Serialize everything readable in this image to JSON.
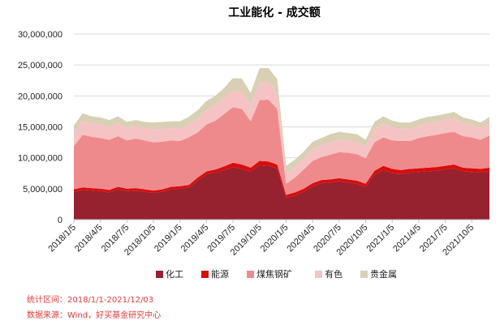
{
  "chart_data": {
    "type": "area",
    "stacked": true,
    "title": "工业能化 - 成交额",
    "xlabel": "",
    "ylabel": "",
    "ylim": [
      0,
      30000000
    ],
    "yticks": [
      "0",
      "5,000,000",
      "10,000,000",
      "15,000,000",
      "20,000,000",
      "25,000,000",
      "30,000,000"
    ],
    "xticks": [
      "2018/1/5",
      "2018/4/5",
      "2018/7/5",
      "2018/10/5",
      "2019/1/5",
      "2019/4/5",
      "2019/7/5",
      "2019/10/5",
      "2020/1/5",
      "2020/4/5",
      "2020/7/5",
      "2020/10/5",
      "2021/1/5",
      "2021/4/5",
      "2021/7/5",
      "2021/10/5"
    ],
    "grid": true,
    "legend_position": "bottom",
    "x": [
      "2018/1/5",
      "2018/2/5",
      "2018/3/5",
      "2018/4/5",
      "2018/5/5",
      "2018/6/5",
      "2018/7/5",
      "2018/8/5",
      "2018/9/5",
      "2018/10/5",
      "2018/11/5",
      "2018/12/5",
      "2019/1/5",
      "2019/2/5",
      "2019/3/5",
      "2019/4/5",
      "2019/5/5",
      "2019/6/5",
      "2019/7/5",
      "2019/8/5",
      "2019/9/5",
      "2019/10/5",
      "2019/11/5",
      "2019/12/5",
      "2020/1/5",
      "2020/2/5",
      "2020/3/5",
      "2020/4/5",
      "2020/5/5",
      "2020/6/5",
      "2020/7/5",
      "2020/8/5",
      "2020/9/5",
      "2020/10/5",
      "2020/11/5",
      "2020/12/5",
      "2021/1/5",
      "2021/2/5",
      "2021/3/5",
      "2021/4/5",
      "2021/5/5",
      "2021/6/5",
      "2021/7/5",
      "2021/8/5",
      "2021/9/5",
      "2021/10/5",
      "2021/11/5",
      "2021/12/3"
    ],
    "series": [
      {
        "name": "化工",
        "color": "#96212f",
        "values": [
          4500000,
          4800000,
          4700000,
          4600000,
          4400000,
          4900000,
          4600000,
          4700000,
          4500000,
          4300000,
          4500000,
          4900000,
          5000000,
          5200000,
          6300000,
          7300000,
          7600000,
          8000000,
          8500000,
          8200000,
          7800000,
          8800000,
          8700000,
          8300000,
          3500000,
          3900000,
          4500000,
          5400000,
          5900000,
          6000000,
          6200000,
          6000000,
          5800000,
          5300000,
          7300000,
          8000000,
          7500000,
          7400000,
          7600000,
          7700000,
          7800000,
          7900000,
          8100000,
          8300000,
          7800000,
          7700000,
          7600000,
          7800000
        ]
      },
      {
        "name": "能源",
        "color": "#d90c0c",
        "values": [
          400000,
          400000,
          400000,
          400000,
          400000,
          400000,
          400000,
          400000,
          400000,
          400000,
          400000,
          400000,
          400000,
          400000,
          500000,
          500000,
          500000,
          600000,
          700000,
          700000,
          600000,
          700000,
          700000,
          600000,
          500000,
          500000,
          500000,
          500000,
          500000,
          500000,
          500000,
          500000,
          500000,
          500000,
          600000,
          700000,
          700000,
          600000,
          600000,
          600000,
          600000,
          600000,
          600000,
          600000,
          600000,
          600000,
          600000,
          600000
        ]
      },
      {
        "name": "煤焦钢矿",
        "color": "#ef8a8c",
        "values": [
          7000000,
          8500000,
          8300000,
          8200000,
          8100000,
          8200000,
          7800000,
          8000000,
          7900000,
          7800000,
          7700000,
          7500000,
          7300000,
          7700000,
          7300000,
          7600000,
          7900000,
          8500000,
          9000000,
          9000000,
          7500000,
          9800000,
          10000000,
          9000000,
          1800000,
          2400000,
          3100000,
          3600000,
          3700000,
          4000000,
          4200000,
          4300000,
          4300000,
          4100000,
          4600000,
          4600000,
          4600000,
          4700000,
          4500000,
          4900000,
          5100000,
          5200000,
          5300000,
          5300000,
          5100000,
          5000000,
          4700000,
          5200000
        ]
      },
      {
        "name": "有色",
        "color": "#f6c3c4",
        "values": [
          2200000,
          2300000,
          2200000,
          2200000,
          2100000,
          2100000,
          2000000,
          2000000,
          2000000,
          2100000,
          2100000,
          2000000,
          2000000,
          2100000,
          2300000,
          2400000,
          2500000,
          2600000,
          2700000,
          2700000,
          2600000,
          2800000,
          2800000,
          2700000,
          1600000,
          1700000,
          1800000,
          1900000,
          1900000,
          2000000,
          2000000,
          2000000,
          2000000,
          1900000,
          2100000,
          2200000,
          2100000,
          2000000,
          2000000,
          2000000,
          2100000,
          2100000,
          2100000,
          2200000,
          2100000,
          2000000,
          1900000,
          2000000
        ]
      },
      {
        "name": "贵金属",
        "color": "#d9cfb5",
        "values": [
          1100000,
          1200000,
          1100000,
          1100000,
          1100000,
          1100000,
          1000000,
          1000000,
          1000000,
          1100000,
          1100000,
          1100000,
          1200000,
          1200000,
          1300000,
          1400000,
          1500000,
          1600000,
          2000000,
          2200000,
          2000000,
          2400000,
          2300000,
          2100000,
          1300000,
          1200000,
          1100000,
          1200000,
          1200000,
          1300000,
          1300000,
          1200000,
          1200000,
          1100000,
          1200000,
          1200000,
          1100000,
          1000000,
          1000000,
          1000000,
          1000000,
          1000000,
          1000000,
          1000000,
          900000,
          900000,
          900000,
          1000000
        ]
      }
    ]
  },
  "notes": {
    "period": "统计区间：2018/1/1-2021/12/03",
    "source": "数据来源：Wind，好买基金研究中心"
  }
}
